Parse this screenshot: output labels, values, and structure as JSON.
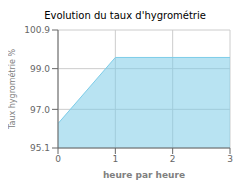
{
  "chart_data": {
    "type": "area",
    "title": "Evolution du taux d'hygrométrie",
    "xlabel": "heure par heure",
    "ylabel": "Taux hygrométrie %",
    "x": [
      0,
      1,
      3
    ],
    "values": [
      96.3,
      99.55,
      99.55
    ],
    "color": "#7dcce8",
    "xlim": [
      0,
      3
    ],
    "xticks": [
      0,
      1,
      2,
      3
    ],
    "ylim": [
      95.1,
      100.9
    ],
    "yticks": [
      95.1,
      {
        "value": 97,
        "label": "97.0"
      },
      {
        "value": 99,
        "label": "99.0"
      },
      100.9
    ],
    "grid": true
  }
}
